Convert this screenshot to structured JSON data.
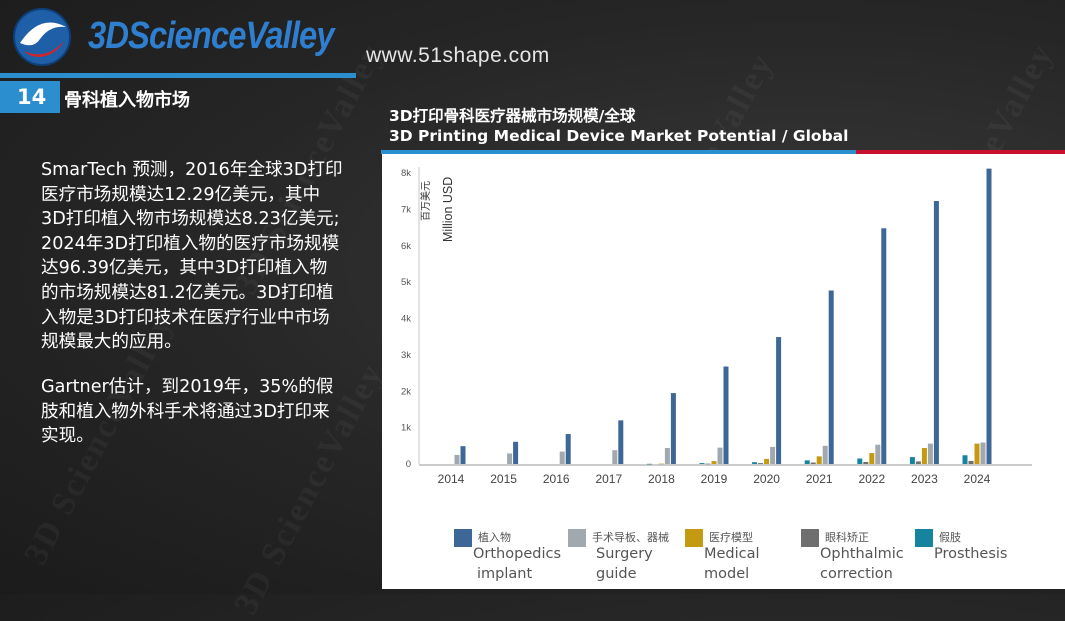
{
  "brand": {
    "name": "3DScienceValley",
    "url": "www.51shape.com",
    "watermark": "3D ScienceValley"
  },
  "section": {
    "number": "14",
    "title": "骨科植入物市场"
  },
  "text": {
    "paragraph1_lines": [
      "SmarTech 预测，2016年全球3D打印",
      "医疗市场规模达12.29亿美元，其中",
      "3D打印植入物市场规模达8.23亿美元;",
      "2024年3D打印植入物的医疗市场规模",
      "达96.39亿美元，其中3D打印植入物",
      "的市场规模达81.2亿美元。3D打印植",
      "入物是3D打印技术在医疗行业中市场",
      "规模最大的应用。"
    ],
    "paragraph2_lines": [
      "Gartner估计，到2019年，35%的假",
      "肢和植入物外科手术将通过3D打印来",
      "实现。"
    ]
  },
  "chart_title": {
    "cn": "3D打印骨科医疗器械市场规模/全球",
    "en": "3D Printing Medical Device Market Potential / Global"
  },
  "colors": {
    "accent_blue": "#2b8fcf",
    "accent_red": "#c8102e"
  },
  "chart_data": {
    "type": "bar",
    "ylabel_cn": "百万美元",
    "ylabel_en": "Million USD",
    "ylim": [
      0,
      8000
    ],
    "yticks": [
      "0",
      "1k",
      "2k",
      "3k",
      "4k",
      "5k",
      "6k",
      "7k",
      "8k"
    ],
    "categories": [
      "2014",
      "2015",
      "2016",
      "2017",
      "2018",
      "2019",
      "2020",
      "2021",
      "2022",
      "2023",
      "2024"
    ],
    "series": [
      {
        "name_cn": "植入物",
        "name_en": "Orthopedics implant",
        "color": "#3c6796",
        "values": [
          490,
          610,
          823,
          1200,
          1950,
          2680,
          3490,
          4770,
          6480,
          7230,
          8120
        ]
      },
      {
        "name_cn": "手术导板、器械",
        "name_en": "Surgery guide",
        "color": "#a1a9ae",
        "values": [
          250,
          290,
          340,
          380,
          440,
          450,
          470,
          500,
          530,
          560,
          590
        ]
      },
      {
        "name_cn": "医疗模型",
        "name_en": "Medical model",
        "color": "#c39a12",
        "values": [
          0,
          0,
          0,
          0,
          10,
          80,
          140,
          210,
          300,
          440,
          560
        ]
      },
      {
        "name_cn": "眼科矫正",
        "name_en": "Ophthalmic correction",
        "color": "#6f6f6f",
        "values": [
          0,
          0,
          0,
          0,
          0,
          10,
          25,
          40,
          55,
          70,
          85
        ]
      },
      {
        "name_cn": "假肢",
        "name_en": "Prosthesis",
        "color": "#16849f",
        "values": [
          0,
          0,
          0,
          0,
          5,
          25,
          50,
          100,
          150,
          190,
          240
        ]
      }
    ]
  }
}
